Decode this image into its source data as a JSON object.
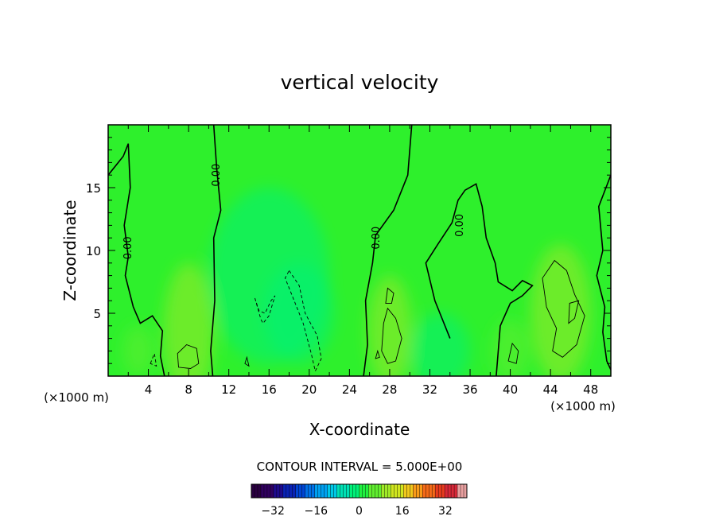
{
  "chart_data": {
    "type": "contour",
    "title": "vertical velocity",
    "xlabel": "X-coordinate",
    "ylabel": "Z-coordinate",
    "x_unit_left": "(×1000 m)",
    "x_unit_right": "(×1000 m)",
    "xlim": [
      0,
      50
    ],
    "ylim": [
      0,
      20
    ],
    "xticks": [
      4,
      8,
      12,
      16,
      20,
      24,
      28,
      32,
      36,
      40,
      44,
      48
    ],
    "yticks": [
      5,
      10,
      15
    ],
    "contour_interval_text": "CONTOUR INTERVAL = 5.000E+00",
    "contour_interval": 5,
    "contour_labels": [
      {
        "text": "0.00",
        "x": 10.8,
        "y": 16.0
      },
      {
        "text": "0.00",
        "x": 2.0,
        "y": 10.2
      },
      {
        "text": "0.00",
        "x": 26.7,
        "y": 11.0
      },
      {
        "text": "0.00",
        "x": 35.0,
        "y": 12.0
      }
    ],
    "zero_contours": [
      [
        [
          0,
          16
        ],
        [
          1.5,
          17.5
        ],
        [
          2.0,
          18.5
        ],
        [
          2.2,
          15
        ],
        [
          1.6,
          12
        ],
        [
          2.0,
          9.5
        ],
        [
          1.7,
          8.0
        ],
        [
          2.5,
          5.5
        ],
        [
          3.2,
          4.2
        ],
        [
          4.4,
          4.8
        ],
        [
          5.4,
          3.6
        ],
        [
          5.2,
          1.6
        ],
        [
          5.6,
          0
        ]
      ],
      [
        [
          10.5,
          20
        ],
        [
          10.8,
          16.5
        ],
        [
          11.2,
          13.2
        ],
        [
          10.5,
          11
        ],
        [
          10.6,
          6
        ],
        [
          10.2,
          2
        ],
        [
          10.4,
          0
        ]
      ],
      [
        [
          30.2,
          20
        ],
        [
          29.8,
          16
        ],
        [
          28.4,
          13.2
        ],
        [
          26.6,
          11.2
        ],
        [
          26.3,
          9
        ],
        [
          25.6,
          6
        ],
        [
          25.8,
          2.5
        ],
        [
          25.4,
          0
        ]
      ],
      [
        [
          34,
          3
        ],
        [
          32.5,
          6
        ],
        [
          31.6,
          9
        ],
        [
          32.8,
          10.5
        ],
        [
          34.2,
          12.2
        ],
        [
          34.8,
          14
        ],
        [
          35.5,
          14.8
        ],
        [
          36.6,
          15.3
        ],
        [
          37.2,
          13.5
        ],
        [
          37.6,
          11
        ],
        [
          38.5,
          9
        ],
        [
          38.8,
          7.5
        ],
        [
          40.2,
          6.8
        ],
        [
          41.2,
          7.6
        ],
        [
          42.2,
          7.2
        ],
        [
          41.2,
          6.4
        ],
        [
          40.0,
          5.8
        ],
        [
          39.0,
          4.0
        ],
        [
          38.6,
          0
        ]
      ],
      [
        [
          50,
          16
        ],
        [
          48.8,
          13.5
        ],
        [
          49.2,
          10
        ],
        [
          48.6,
          8
        ],
        [
          49.4,
          5.5
        ],
        [
          49.2,
          3.5
        ],
        [
          49.6,
          1.2
        ],
        [
          50,
          0.5
        ]
      ]
    ],
    "positive_contours": [
      [
        [
          7.0,
          0.7
        ],
        [
          6.9,
          1.8
        ],
        [
          7.8,
          2.5
        ],
        [
          8.8,
          2.2
        ],
        [
          9.0,
          1.0
        ],
        [
          8.2,
          0.6
        ]
      ],
      [
        [
          43.6,
          5.5
        ],
        [
          43.2,
          7.8
        ],
        [
          44.4,
          9.2
        ],
        [
          45.6,
          8.4
        ],
        [
          46.4,
          6.5
        ],
        [
          47.4,
          4.8
        ],
        [
          46.6,
          2.5
        ],
        [
          45.2,
          1.5
        ],
        [
          44.2,
          2.0
        ],
        [
          44.6,
          3.8
        ]
      ],
      [
        [
          45.8,
          4.2
        ],
        [
          45.9,
          5.8
        ],
        [
          46.8,
          6.0
        ],
        [
          46.4,
          4.6
        ]
      ],
      [
        [
          27.2,
          2.0
        ],
        [
          27.4,
          4.2
        ],
        [
          27.8,
          5.4
        ],
        [
          28.6,
          4.6
        ],
        [
          29.2,
          3.0
        ],
        [
          28.6,
          1.2
        ],
        [
          27.8,
          1.0
        ]
      ],
      [
        [
          27.6,
          5.8
        ],
        [
          27.8,
          7.0
        ],
        [
          28.4,
          6.6
        ],
        [
          28.2,
          5.8
        ]
      ],
      [
        [
          39.8,
          1.2
        ],
        [
          40.2,
          2.6
        ],
        [
          40.8,
          2.0
        ],
        [
          40.6,
          1.0
        ]
      ],
      [
        [
          26.6,
          1.4
        ],
        [
          26.8,
          2.0
        ],
        [
          27.0,
          1.5
        ]
      ],
      [
        [
          13.6,
          1.0
        ],
        [
          13.8,
          1.5
        ],
        [
          14.0,
          0.8
        ]
      ]
    ],
    "negative_contours": [
      [
        [
          18.0,
          8.4
        ],
        [
          19.0,
          7.2
        ],
        [
          19.6,
          5.0
        ],
        [
          20.8,
          3.2
        ],
        [
          21.2,
          1.4
        ],
        [
          20.6,
          0.4
        ],
        [
          20.2,
          1.8
        ],
        [
          19.4,
          4.2
        ],
        [
          18.4,
          6.2
        ],
        [
          17.6,
          7.8
        ],
        [
          18.0,
          8.4
        ]
      ],
      [
        [
          14.6,
          6.2
        ],
        [
          15.2,
          4.5
        ],
        [
          15.4,
          4.2
        ],
        [
          16.0,
          4.8
        ],
        [
          16.6,
          6.4
        ],
        [
          16.2,
          6.0
        ],
        [
          15.6,
          5.0
        ],
        [
          15.0,
          5.2
        ],
        [
          14.6,
          6.2
        ]
      ],
      [
        [
          4.2,
          1.0
        ],
        [
          4.6,
          1.8
        ],
        [
          4.8,
          0.8
        ]
      ]
    ],
    "colorbar": {
      "ticks": [
        "-32",
        "-16",
        "0",
        "16",
        "32"
      ],
      "range": [
        -40,
        40
      ],
      "colors": [
        "#2a0040",
        "#30005e",
        "#1e0a8c",
        "#0a22b4",
        "#0044d2",
        "#0070e6",
        "#00a0f0",
        "#00c8e6",
        "#00e0b4",
        "#00f078",
        "#20f040",
        "#60ee30",
        "#a0ea28",
        "#d0e620",
        "#f0c81c",
        "#f89a18",
        "#f46a18",
        "#e83c1e",
        "#d82838",
        "#e8a0a0"
      ]
    },
    "field_background": "#2ef02c",
    "field_blobs": [
      {
        "x": 8,
        "y": 3.5,
        "rx": 2.5,
        "ry": 5.5,
        "value": 8
      },
      {
        "x": 28,
        "y": 3.5,
        "rx": 2.2,
        "ry": 4.5,
        "value": 9
      },
      {
        "x": 45,
        "y": 5,
        "rx": 3.0,
        "ry": 5.5,
        "value": 10
      },
      {
        "x": 3,
        "y": 2,
        "rx": 1.5,
        "ry": 2,
        "value": 5
      },
      {
        "x": 40,
        "y": 2,
        "rx": 1.8,
        "ry": 2.5,
        "value": 5
      },
      {
        "x": 19,
        "y": 5,
        "rx": 3.5,
        "ry": 4,
        "value": -4
      },
      {
        "x": 16,
        "y": 8,
        "rx": 6,
        "ry": 7,
        "value": -2
      },
      {
        "x": 33,
        "y": 2,
        "rx": 3,
        "ry": 3,
        "value": -3
      }
    ]
  }
}
